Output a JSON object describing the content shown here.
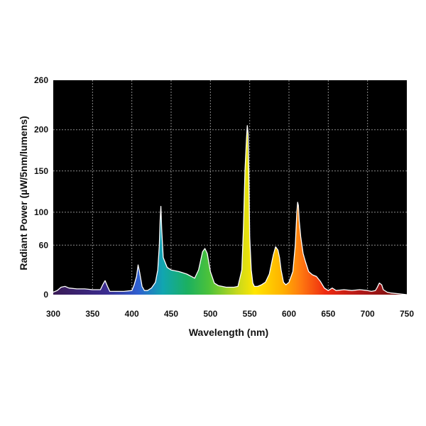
{
  "chart_data": {
    "type": "area",
    "xlabel": "Wavelength (nm)",
    "ylabel": "Radiant Power (µW/5nm/lumens)",
    "xlim": [
      300,
      750
    ],
    "ylim": [
      0,
      260
    ],
    "x_ticks": [
      300,
      350,
      400,
      450,
      500,
      550,
      600,
      650,
      700,
      750
    ],
    "y_ticks": [
      0,
      60,
      100,
      150,
      200,
      260
    ],
    "grid": true,
    "plot_background": "#000000",
    "grid_color": "#8a8a8a",
    "fill": "visible-spectrum gradient (violet to red)",
    "series": [
      {
        "x": [
          300,
          305,
          310,
          315,
          320,
          330,
          340,
          350,
          360,
          363,
          366,
          369,
          372,
          380,
          390,
          400,
          403,
          406,
          408,
          410,
          413,
          416,
          420,
          425,
          430,
          433,
          435,
          436,
          437,
          438,
          440,
          445,
          450,
          460,
          470,
          480,
          485,
          490,
          493,
          496,
          500,
          505,
          510,
          520,
          530,
          535,
          540,
          542,
          544,
          546,
          547,
          548,
          549,
          550,
          552,
          554,
          556,
          560,
          565,
          570,
          575,
          580,
          583,
          586,
          588,
          590,
          593,
          596,
          600,
          605,
          608,
          610,
          611,
          612,
          613,
          615,
          618,
          621,
          625,
          630,
          635,
          640,
          645,
          650,
          655,
          660,
          670,
          680,
          690,
          700,
          705,
          710,
          712,
          715,
          718,
          720,
          725,
          730,
          740,
          750
        ],
        "y": [
          3,
          5,
          9,
          10,
          8,
          7,
          7,
          6,
          6,
          12,
          17,
          10,
          4,
          4,
          4,
          5,
          12,
          22,
          36,
          27,
          10,
          5,
          5,
          8,
          15,
          30,
          60,
          90,
          107,
          80,
          45,
          33,
          30,
          28,
          25,
          20,
          30,
          52,
          56,
          50,
          28,
          14,
          11,
          9,
          9,
          10,
          30,
          80,
          150,
          190,
          205,
          195,
          140,
          70,
          30,
          14,
          10,
          10,
          12,
          15,
          25,
          48,
          58,
          54,
          45,
          30,
          15,
          12,
          15,
          28,
          60,
          100,
          112,
          108,
          90,
          70,
          50,
          40,
          28,
          24,
          22,
          16,
          8,
          5,
          8,
          5,
          6,
          5,
          6,
          5,
          4,
          5,
          8,
          14,
          12,
          6,
          3,
          2,
          1,
          0
        ]
      }
    ]
  }
}
